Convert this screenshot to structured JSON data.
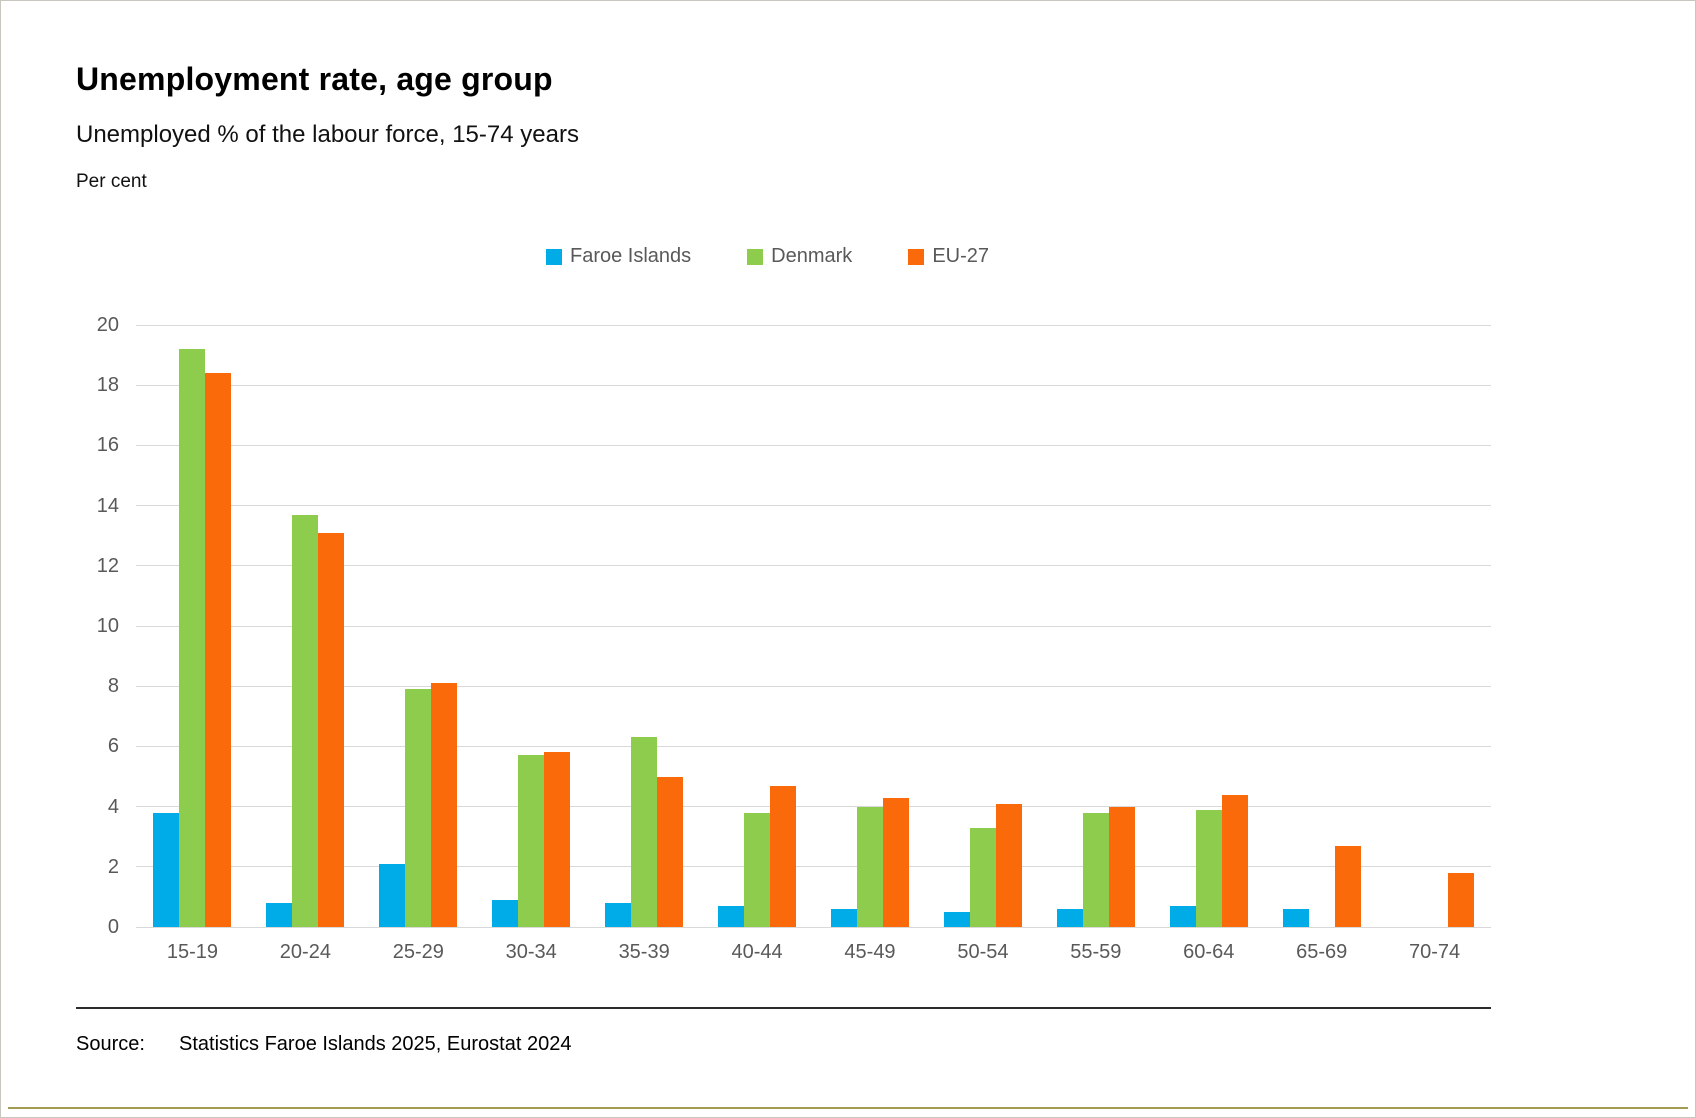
{
  "header": {
    "title": "Unemployment rate, age group",
    "subtitle": "Unemployed % of the labour force, 15-74 years",
    "unit_label": "Per cent"
  },
  "chart_data": {
    "type": "bar",
    "title": "Unemployment rate, age group",
    "subtitle": "Unemployed % of the labour force, 15-74 years",
    "ylabel": "Per cent",
    "xlabel": "",
    "ylim": [
      0,
      20
    ],
    "yticks": [
      0,
      2,
      4,
      6,
      8,
      10,
      12,
      14,
      16,
      18,
      20
    ],
    "grid": true,
    "legend_position": "top-center",
    "categories": [
      "15-19",
      "20-24",
      "25-29",
      "30-34",
      "35-39",
      "40-44",
      "45-49",
      "50-54",
      "55-59",
      "60-64",
      "65-69",
      "70-74"
    ],
    "series": [
      {
        "name": "Faroe Islands",
        "color": "#00ace8",
        "values": [
          3.8,
          0.8,
          2.1,
          0.9,
          0.8,
          0.7,
          0.6,
          0.5,
          0.6,
          0.7,
          0.6,
          null
        ]
      },
      {
        "name": "Denmark",
        "color": "#8dcc4d",
        "values": [
          19.2,
          13.7,
          7.9,
          5.7,
          6.3,
          3.8,
          4.0,
          3.3,
          3.8,
          3.9,
          null,
          null
        ]
      },
      {
        "name": "EU-27",
        "color": "#fa6a0a",
        "values": [
          18.4,
          13.1,
          8.1,
          5.8,
          5.0,
          4.7,
          4.3,
          4.1,
          4.0,
          4.4,
          2.7,
          1.8
        ]
      }
    ]
  },
  "footer": {
    "source_label": "Source:",
    "source_text": "Statistics Faroe Islands 2025, Eurostat 2024"
  },
  "colors": {
    "gridline": "#d9d9d9",
    "axis_text": "#595959",
    "bottom_rule": "#a39b52",
    "divider": "#2b2b2b"
  }
}
